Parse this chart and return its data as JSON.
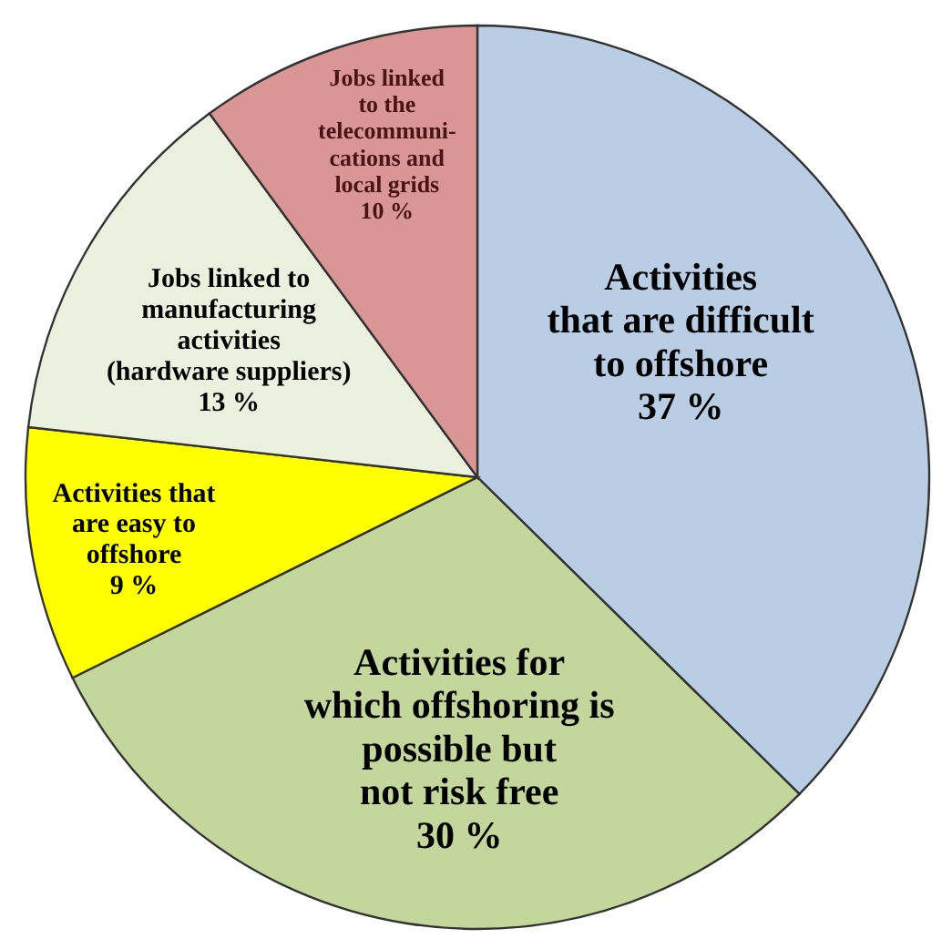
{
  "chart_data": {
    "type": "pie",
    "categories": [
      "Activities\nthat are difficult\nto offshore",
      "Activities for\nwhich offshoring is\npossible but\nnot risk free",
      "Activities that\nare easy to\noffshore",
      "Jobs linked to\nmanufacturing\nactivities\n(hardware suppliers)",
      "Jobs linked\nto the\ntelecommuni-\ncations and\nlocal grids"
    ],
    "values": [
      37,
      30,
      9,
      13,
      10
    ],
    "value_labels": [
      "37 %",
      "30 %",
      "9 %",
      "13 %",
      "10 %"
    ],
    "colors": [
      "#b9cde5",
      "#c3d69b",
      "#ffff00",
      "#ebf1de",
      "#d99694"
    ],
    "legend": false
  }
}
